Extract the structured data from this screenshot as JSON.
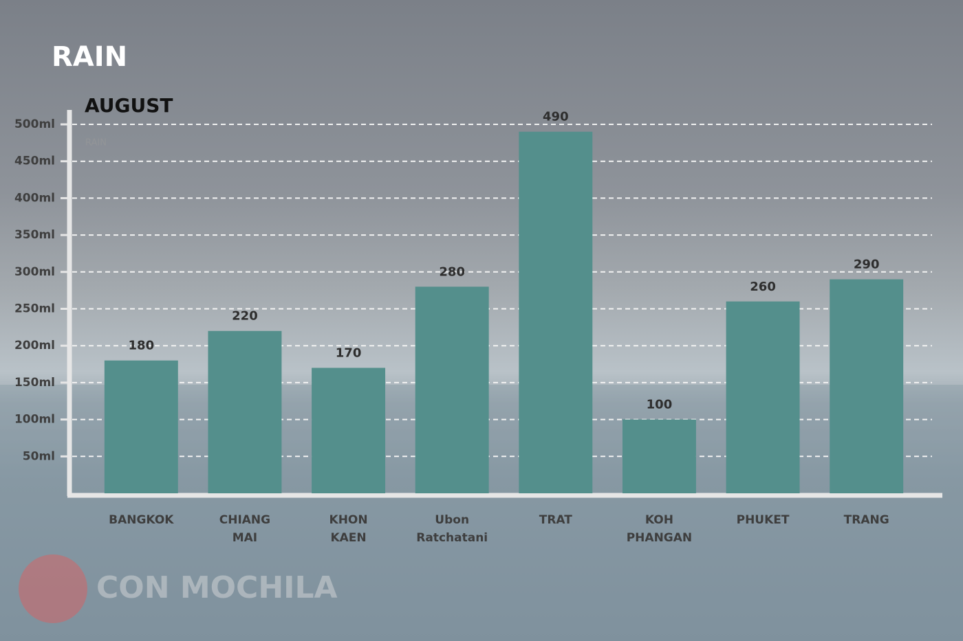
{
  "chart_data": {
    "type": "bar",
    "title": "RAIN",
    "subtitle": "AUGUST",
    "watermark": "CON MOCHILA",
    "categories": [
      "BANGKOK",
      "CHIANG MAI",
      "KHON KAEN",
      "Ubon Ratchatani",
      "TRAT",
      "KOH PHANGAN",
      "PHUKET",
      "TRANG"
    ],
    "series": [
      {
        "name": "RAIN",
        "color": "#548f8c",
        "values": [
          180,
          220,
          170,
          280,
          490,
          100,
          260,
          290
        ]
      }
    ],
    "ylim": [
      0,
      500
    ],
    "yticks": [
      {
        "value": 50,
        "label": "50ml"
      },
      {
        "value": 100,
        "label": "100ml"
      },
      {
        "value": 150,
        "label": "150ml"
      },
      {
        "value": 200,
        "label": "200ml"
      },
      {
        "value": 250,
        "label": "250ml"
      },
      {
        "value": 300,
        "label": "300ml"
      },
      {
        "value": 350,
        "label": "350ml"
      },
      {
        "value": 400,
        "label": "400ml"
      },
      {
        "value": 450,
        "label": "450ml"
      },
      {
        "value": 500,
        "label": "500ml"
      }
    ],
    "grid": true
  }
}
